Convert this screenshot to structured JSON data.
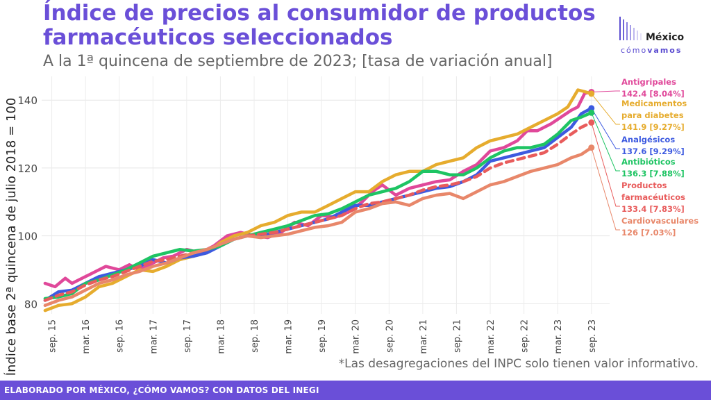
{
  "title": "Índice de precios al consumidor de productos farmacéuticos seleccionados",
  "subtitle": "A la 1ª quincena de septiembre de 2023; [tasa de variación anual]",
  "logo": {
    "word1": "México",
    "word2_a": "cómo",
    "word2_b": "vamos"
  },
  "note": "*Las desagregaciones del INPC solo tienen valor informativo.",
  "footer": "ELABORADO POR MÉXICO, ¿CÓMO VAMOS? CON DATOS DEL INEGI",
  "colors": {
    "brand": "#6a4fd8",
    "footer_bg": "#6a4fd8"
  },
  "chart_data": {
    "type": "line",
    "ylabel": "Índice base 2ª quincena de julio 2018 = 100",
    "ylim": [
      77,
      147
    ],
    "yticks": [
      80,
      100,
      120,
      140
    ],
    "xlim": [
      2015.55,
      2023.97
    ],
    "grid": true,
    "legend": "right",
    "x_ticks": [
      {
        "label": "sep. 15",
        "x": 2015.7
      },
      {
        "label": "mar. 16",
        "x": 2016.2
      },
      {
        "label": "sep. 16",
        "x": 2016.7
      },
      {
        "label": "mar. 17",
        "x": 2017.2
      },
      {
        "label": "sep. 17",
        "x": 2017.7
      },
      {
        "label": "mar. 18",
        "x": 2018.2
      },
      {
        "label": "sep. 18",
        "x": 2018.7
      },
      {
        "label": "mar. 19",
        "x": 2019.2
      },
      {
        "label": "sep. 19",
        "x": 2019.7
      },
      {
        "label": "mar. 20",
        "x": 2020.2
      },
      {
        "label": "sep. 20",
        "x": 2020.7
      },
      {
        "label": "mar. 21",
        "x": 2021.2
      },
      {
        "label": "sep. 21",
        "x": 2021.7
      },
      {
        "label": "mar. 22",
        "x": 2022.2
      },
      {
        "label": "sep. 22",
        "x": 2022.7
      },
      {
        "label": "mar. 23",
        "x": 2023.2
      },
      {
        "label": "sep. 23",
        "x": 2023.7
      }
    ],
    "series": [
      {
        "name": "Antigripales",
        "value_label": "142.4 [8.04%]",
        "color": "#e0489a",
        "dashed": false,
        "x": [
          2015.6,
          2015.75,
          2015.9,
          2016.0,
          2016.2,
          2016.4,
          2016.5,
          2016.7,
          2016.85,
          2017.0,
          2017.2,
          2017.35,
          2017.5,
          2017.7,
          2017.9,
          2018.1,
          2018.3,
          2018.5,
          2018.7,
          2018.9,
          2019.1,
          2019.3,
          2019.5,
          2019.7,
          2019.9,
          2020.1,
          2020.3,
          2020.45,
          2020.6,
          2020.8,
          2021.0,
          2021.2,
          2021.4,
          2021.6,
          2021.8,
          2022.0,
          2022.2,
          2022.4,
          2022.6,
          2022.75,
          2022.9,
          2023.1,
          2023.25,
          2023.4,
          2023.5,
          2023.6,
          2023.7
        ],
        "y": [
          86,
          85,
          87.5,
          86,
          88,
          90,
          91,
          90,
          91.5,
          90,
          92,
          93.5,
          94,
          96,
          95,
          97,
          100,
          101,
          100,
          99.5,
          101,
          104,
          103,
          106,
          105.5,
          107,
          110,
          113,
          115,
          112,
          114,
          115,
          116,
          116.5,
          119,
          121,
          125,
          126,
          128,
          131,
          131,
          133,
          135,
          137,
          138,
          142,
          142.4
        ]
      },
      {
        "name": "Medicamentos para diabetes",
        "value_label": "141.9 [9.27%]",
        "color": "#e6ac2e",
        "dashed": false,
        "x": [
          2015.6,
          2015.8,
          2016.0,
          2016.2,
          2016.4,
          2016.6,
          2016.8,
          2017.0,
          2017.2,
          2017.4,
          2017.6,
          2017.8,
          2018.0,
          2018.2,
          2018.4,
          2018.6,
          2018.8,
          2019.0,
          2019.2,
          2019.4,
          2019.6,
          2019.8,
          2020.0,
          2020.2,
          2020.4,
          2020.6,
          2020.8,
          2021.0,
          2021.2,
          2021.4,
          2021.6,
          2021.8,
          2022.0,
          2022.2,
          2022.4,
          2022.6,
          2022.8,
          2023.0,
          2023.2,
          2023.35,
          2023.5,
          2023.6,
          2023.7
        ],
        "y": [
          78,
          79.5,
          80,
          82,
          85,
          86,
          88,
          90,
          89.5,
          91,
          93,
          94,
          95,
          98,
          100,
          101,
          103,
          104,
          106,
          107,
          107,
          109,
          111,
          113,
          113,
          116,
          118,
          119,
          119,
          121,
          122,
          123,
          126,
          128,
          129,
          130,
          132,
          134,
          136,
          138,
          143,
          142.5,
          141.9
        ]
      },
      {
        "name": "Analgésicos",
        "value_label": "137.6 [9.29%]",
        "color": "#3d5ae0",
        "dashed": false,
        "x": [
          2015.6,
          2015.8,
          2016.0,
          2016.2,
          2016.4,
          2016.6,
          2016.8,
          2017.0,
          2017.2,
          2017.4,
          2017.6,
          2017.8,
          2018.0,
          2018.2,
          2018.4,
          2018.6,
          2018.8,
          2019.0,
          2019.2,
          2019.4,
          2019.6,
          2019.8,
          2020.0,
          2020.2,
          2020.4,
          2020.6,
          2020.8,
          2021.0,
          2021.2,
          2021.4,
          2021.6,
          2021.8,
          2022.0,
          2022.2,
          2022.4,
          2022.6,
          2022.8,
          2023.0,
          2023.2,
          2023.4,
          2023.55,
          2023.7
        ],
        "y": [
          81,
          83.5,
          84,
          86,
          88,
          89,
          90,
          91,
          93,
          92,
          93.5,
          94,
          95,
          97,
          99,
          100,
          100,
          101,
          102,
          103,
          104,
          105,
          107,
          109,
          109,
          110,
          111,
          112,
          113,
          114,
          114.5,
          116,
          118,
          122,
          123,
          124,
          125,
          126,
          129,
          132,
          136,
          137.6
        ]
      },
      {
        "name": "Antibióticos",
        "value_label": "136.3 [7.88%]",
        "color": "#1ec463",
        "dashed": false,
        "x": [
          2015.6,
          2015.8,
          2016.0,
          2016.2,
          2016.4,
          2016.6,
          2016.8,
          2017.0,
          2017.2,
          2017.4,
          2017.6,
          2017.8,
          2018.0,
          2018.2,
          2018.4,
          2018.6,
          2018.8,
          2019.0,
          2019.2,
          2019.4,
          2019.6,
          2019.8,
          2020.0,
          2020.2,
          2020.4,
          2020.6,
          2020.8,
          2021.0,
          2021.2,
          2021.4,
          2021.6,
          2021.8,
          2022.0,
          2022.2,
          2022.4,
          2022.6,
          2022.8,
          2023.0,
          2023.2,
          2023.4,
          2023.55,
          2023.7
        ],
        "y": [
          81.5,
          82,
          83,
          86,
          87,
          88.5,
          90,
          92,
          94,
          95,
          96,
          95.5,
          96,
          97,
          99,
          100,
          101,
          102,
          103,
          104.5,
          106,
          106.5,
          108,
          110,
          112,
          113,
          114,
          116,
          119,
          119,
          118,
          118,
          120,
          123,
          125,
          126,
          126,
          127,
          130,
          134,
          135,
          136.3
        ]
      },
      {
        "name": "Productos farmacéuticos",
        "value_label": "133.4 [7.83%]",
        "color": "#e85c5c",
        "dashed": true,
        "x": [
          2015.6,
          2015.8,
          2016.0,
          2016.2,
          2016.4,
          2016.6,
          2016.8,
          2017.0,
          2017.2,
          2017.4,
          2017.6,
          2017.8,
          2018.0,
          2018.2,
          2018.4,
          2018.6,
          2018.8,
          2019.0,
          2019.2,
          2019.4,
          2019.6,
          2019.8,
          2020.0,
          2020.2,
          2020.4,
          2020.6,
          2020.8,
          2021.0,
          2021.2,
          2021.4,
          2021.6,
          2021.8,
          2022.0,
          2022.2,
          2022.4,
          2022.6,
          2022.8,
          2023.0,
          2023.2,
          2023.4,
          2023.55,
          2023.7
        ],
        "y": [
          81,
          82.5,
          83.5,
          85.5,
          87,
          88,
          89.5,
          91,
          92.5,
          93,
          94,
          95,
          96,
          97.5,
          99,
          100,
          100.5,
          101,
          102,
          103,
          104,
          105,
          106,
          108,
          109.5,
          110,
          111,
          112,
          113.5,
          114.5,
          115,
          116,
          117.5,
          120,
          121.5,
          122.5,
          123.5,
          124.5,
          127,
          130,
          132,
          133.4
        ]
      },
      {
        "name": "Cardiovasculares",
        "value_label": "126 [7.03%]",
        "color": "#e8876a",
        "dashed": false,
        "x": [
          2015.6,
          2015.8,
          2016.0,
          2016.2,
          2016.4,
          2016.6,
          2016.8,
          2017.0,
          2017.2,
          2017.4,
          2017.6,
          2017.8,
          2018.0,
          2018.2,
          2018.4,
          2018.6,
          2018.8,
          2019.0,
          2019.2,
          2019.4,
          2019.6,
          2019.8,
          2020.0,
          2020.2,
          2020.4,
          2020.6,
          2020.8,
          2021.0,
          2021.2,
          2021.4,
          2021.6,
          2021.8,
          2022.0,
          2022.2,
          2022.4,
          2022.6,
          2022.8,
          2023.0,
          2023.2,
          2023.4,
          2023.55,
          2023.7
        ],
        "y": [
          79.5,
          81,
          82,
          84,
          86,
          87,
          88.5,
          89.5,
          91,
          92,
          93.5,
          95,
          96,
          97.5,
          99,
          100,
          99.5,
          100,
          100.5,
          101.5,
          102.5,
          103,
          104,
          107,
          108,
          109.5,
          110,
          109,
          111,
          112,
          112.5,
          111,
          113,
          115,
          116,
          117.5,
          119,
          120,
          121,
          123,
          124,
          126
        ]
      }
    ]
  }
}
